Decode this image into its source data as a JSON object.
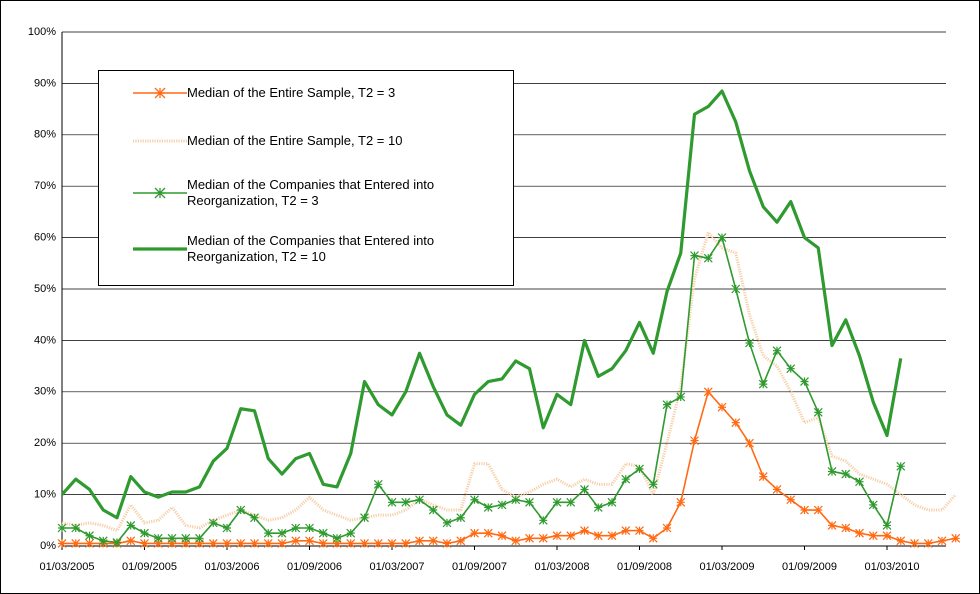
{
  "chart_data": {
    "type": "line",
    "categories": [
      "01/03/2005",
      null,
      null,
      null,
      null,
      null,
      "01/09/2005",
      null,
      null,
      null,
      null,
      null,
      "01/03/2006",
      null,
      null,
      null,
      null,
      null,
      "01/09/2006",
      null,
      null,
      null,
      null,
      null,
      "01/03/2007",
      null,
      null,
      null,
      null,
      null,
      "01/09/2007",
      null,
      null,
      null,
      null,
      null,
      "01/03/2008",
      null,
      null,
      null,
      null,
      null,
      "01/09/2008",
      null,
      null,
      null,
      null,
      null,
      "01/03/2009",
      null,
      null,
      null,
      null,
      null,
      "01/09/2009",
      null,
      null,
      null,
      null,
      null,
      "01/03/2010",
      null,
      null,
      null,
      null,
      null
    ],
    "ylim": [
      0,
      100
    ],
    "yticks": [
      {
        "value": 0,
        "label": "0%"
      },
      {
        "value": 10,
        "label": "10%"
      },
      {
        "value": 20,
        "label": "20%"
      },
      {
        "value": 30,
        "label": "30%"
      },
      {
        "value": 40,
        "label": "40%"
      },
      {
        "value": 50,
        "label": "50%"
      },
      {
        "value": 60,
        "label": "60%"
      },
      {
        "value": 70,
        "label": "70%"
      },
      {
        "value": 80,
        "label": "80%"
      },
      {
        "value": 90,
        "label": "90%"
      },
      {
        "value": 100,
        "label": "100%"
      }
    ],
    "grid": true,
    "legend": "upper left",
    "series": [
      {
        "name": "Median of the Entire Sample, T2 = 3",
        "color": "#ff6a13",
        "style": "marker",
        "values": [
          0.5,
          0.5,
          0.5,
          0.5,
          0.5,
          1,
          0.5,
          0.5,
          0.5,
          0.5,
          0.5,
          0.5,
          0.5,
          0.5,
          0.5,
          0.5,
          0.5,
          1,
          1,
          0.5,
          0.5,
          0.5,
          0.5,
          0.5,
          0.5,
          0.5,
          1,
          1,
          0.5,
          1,
          2.5,
          2.5,
          2,
          1,
          1.5,
          1.5,
          2,
          2,
          3,
          2,
          2,
          3,
          3,
          1.5,
          3.5,
          8.5,
          20.5,
          30,
          27,
          24,
          20,
          13.5,
          11,
          9,
          7,
          7,
          4,
          3.5,
          2.5,
          2,
          2,
          1,
          0.5,
          0.5,
          1,
          1.5
        ]
      },
      {
        "name": "Median of the Entire Sample, T2 = 10",
        "color": "#f6cfa8",
        "style": "dotted",
        "values": [
          4.5,
          4,
          4.5,
          4,
          3,
          8,
          4.5,
          5,
          7.5,
          4,
          3.5,
          5,
          6,
          7,
          6,
          5,
          5.5,
          7,
          9.5,
          7,
          6,
          5,
          5.5,
          6,
          6,
          7,
          9,
          8,
          7,
          7,
          16,
          16,
          11,
          9.5,
          10.5,
          12,
          13,
          11.5,
          13,
          12,
          12,
          16,
          15.5,
          10,
          20,
          31,
          52,
          61,
          58,
          57,
          45,
          37,
          35,
          30,
          24,
          25,
          17.5,
          16.5,
          14,
          13,
          12,
          10,
          8,
          7,
          7,
          10
        ]
      },
      {
        "name": "Median of the Companies that Entered into Reorganization, T2 = 3",
        "color": "#2f9a2f",
        "style": "marker",
        "values": [
          3.5,
          3.5,
          2,
          1,
          0.7,
          4,
          2.5,
          1.5,
          1.5,
          1.5,
          1.5,
          4.5,
          3.5,
          7,
          5.5,
          2.5,
          2.5,
          3.5,
          3.5,
          2.5,
          1.5,
          2.5,
          5.5,
          12,
          8.5,
          8.5,
          9,
          7,
          4.5,
          5.5,
          9,
          7.5,
          8,
          9,
          8.5,
          5,
          8.5,
          8.5,
          11,
          7.5,
          8.5,
          13,
          15,
          12,
          27.5,
          29,
          56.5,
          56,
          60,
          50,
          39.5,
          31.5,
          38,
          34.5,
          32,
          26,
          14.5,
          14,
          12.5,
          8,
          4,
          15.5,
          null,
          null,
          null,
          null
        ]
      },
      {
        "name": "Median of the Companies that Entered into Reorganization, T2 = 10",
        "color": "#2f9a2f",
        "style": "thick",
        "values": [
          10,
          13,
          11,
          7,
          5.5,
          13.5,
          10.5,
          9.5,
          10.5,
          10.5,
          11.5,
          16.5,
          19,
          26.7,
          26.3,
          17,
          14,
          17,
          18,
          12,
          11.5,
          18,
          32,
          27.5,
          25.5,
          30,
          37.5,
          31,
          25.5,
          23.5,
          29.5,
          32,
          32.5,
          36,
          34.5,
          23,
          29.5,
          27.5,
          40,
          33,
          34.5,
          38,
          43.5,
          37.5,
          49.5,
          57,
          84,
          85.5,
          88.5,
          82.5,
          73,
          66,
          63,
          67,
          60,
          58,
          39,
          44,
          37,
          28,
          21.5,
          36.5,
          null,
          null,
          null,
          null
        ]
      }
    ]
  }
}
